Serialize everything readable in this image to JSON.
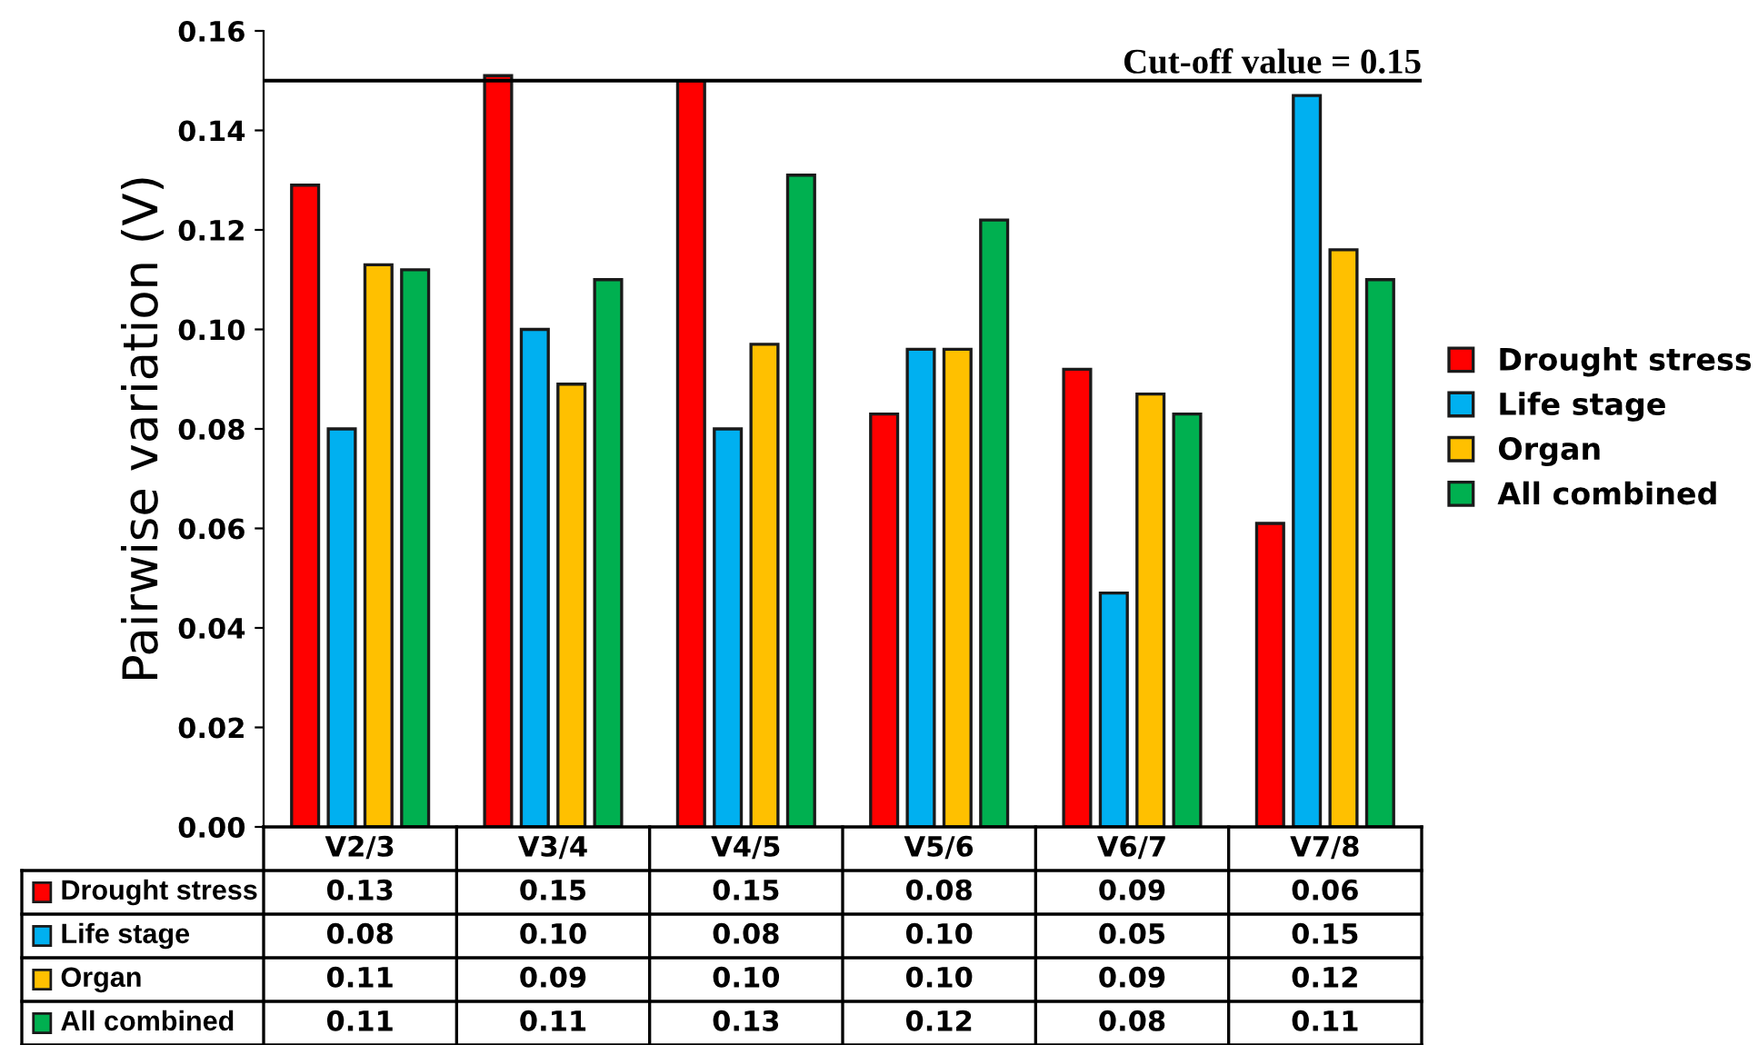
{
  "chart_data": {
    "type": "bar",
    "ylabel": "Pairwise variation (V)",
    "categories": [
      "V2/3",
      "V3/4",
      "V4/5",
      "V5/6",
      "V6/7",
      "V7/8"
    ],
    "series": [
      {
        "name": "Drought stress",
        "color": "#ff0000",
        "values": [
          0.129,
          0.151,
          0.15,
          0.083,
          0.092,
          0.061
        ],
        "value_labels": [
          "0.13",
          "0.15",
          "0.15",
          "0.08",
          "0.09",
          "0.06"
        ]
      },
      {
        "name": "Life stage",
        "color": "#00b0f0",
        "values": [
          0.08,
          0.1,
          0.08,
          0.096,
          0.047,
          0.147
        ],
        "value_labels": [
          "0.08",
          "0.10",
          "0.08",
          "0.10",
          "0.05",
          "0.15"
        ]
      },
      {
        "name": "Organ",
        "color": "#ffc000",
        "values": [
          0.113,
          0.089,
          0.097,
          0.096,
          0.087,
          0.116
        ],
        "value_labels": [
          "0.11",
          "0.09",
          "0.10",
          "0.10",
          "0.09",
          "0.12"
        ]
      },
      {
        "name": "All combined",
        "color": "#00b050",
        "values": [
          0.112,
          0.11,
          0.131,
          0.122,
          0.083,
          0.11
        ],
        "value_labels": [
          "0.11",
          "0.11",
          "0.13",
          "0.12",
          "0.08",
          "0.11"
        ]
      }
    ],
    "ylim": [
      0,
      0.16
    ],
    "yticks": [
      {
        "value": 0,
        "label": "0.00"
      },
      {
        "value": 0.02,
        "label": "0.02"
      },
      {
        "value": 0.04,
        "label": "0.04"
      },
      {
        "value": 0.06,
        "label": "0.06"
      },
      {
        "value": 0.08,
        "label": "0.08"
      },
      {
        "value": 0.1,
        "label": "0.10"
      },
      {
        "value": 0.12,
        "label": "0.12"
      },
      {
        "value": 0.14,
        "label": "0.14"
      },
      {
        "value": 0.16,
        "label": "0.16"
      }
    ],
    "ref_lines": [
      {
        "axis": "y",
        "value": 0.15,
        "label": "Cut-off value = 0.15",
        "color": "#000000"
      }
    ],
    "legend": "right",
    "grid": false
  }
}
